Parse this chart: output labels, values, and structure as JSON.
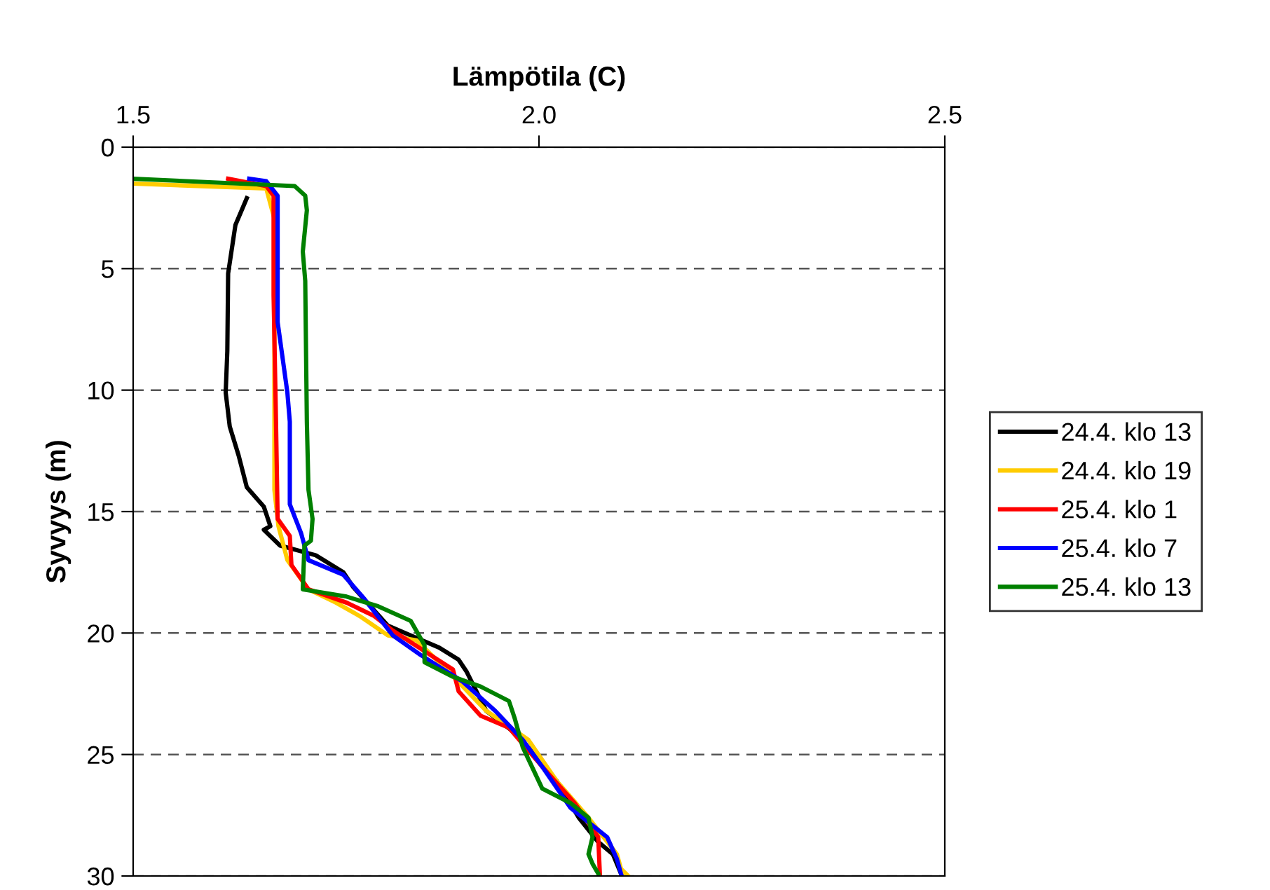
{
  "chart_data": {
    "type": "line",
    "xlabel": "Lämpötila (C)",
    "ylabel": "Syvyys (m)",
    "xlim": [
      1.5,
      2.5
    ],
    "xticks": [
      1.5,
      {
        "value": 2.0,
        "label": "2.0"
      },
      2.5
    ],
    "ylim": [
      30,
      0
    ],
    "yticks": [
      0,
      5,
      10,
      15,
      20,
      25,
      30
    ],
    "grid": "y",
    "legend": "right",
    "marker": "none",
    "line_style": "solid",
    "series": [
      {
        "name": "24.4. klo 13",
        "color": "#000000",
        "x": [
          1.64,
          1.626,
          1.617,
          1.616,
          1.614,
          1.619,
          1.63,
          1.64,
          1.661,
          1.669,
          1.661,
          1.681,
          1.725,
          1.759,
          1.771,
          1.814,
          1.842,
          1.877,
          1.901,
          1.911,
          1.935,
          1.97,
          1.992,
          2.022,
          2.049,
          2.073,
          2.091,
          2.101
        ],
        "values": [
          2.1,
          3.2,
          5.2,
          8.4,
          10.1,
          11.5,
          12.7,
          14.0,
          14.8,
          15.6,
          15.75,
          16.4,
          16.8,
          17.5,
          18.1,
          19.7,
          20.1,
          20.6,
          21.1,
          21.6,
          23.2,
          24.1,
          24.9,
          26.1,
          27.6,
          28.6,
          29.1,
          29.9
        ]
      },
      {
        "name": "24.4. klo 19",
        "color": "#ffcc00",
        "x": [
          1.5,
          1.664,
          1.676,
          1.674,
          1.674,
          1.679,
          1.69,
          1.716,
          1.75,
          1.779,
          1.814,
          1.849,
          1.889,
          1.935,
          1.987,
          2.022,
          2.061,
          2.096,
          2.101,
          2.11
        ],
        "values": [
          1.5,
          1.7,
          3.2,
          5.5,
          14.1,
          15.6,
          17.0,
          18.2,
          18.75,
          19.3,
          20.1,
          20.3,
          21.6,
          23.2,
          24.4,
          26.1,
          27.6,
          29.1,
          29.7,
          30
        ]
      },
      {
        "name": "25.4. klo 1",
        "color": "#ff0000",
        "x": [
          1.617,
          1.664,
          1.673,
          1.673,
          1.676,
          1.678,
          1.693,
          1.695,
          1.716,
          1.763,
          1.797,
          1.82,
          1.866,
          1.894,
          1.901,
          1.928,
          1.963,
          2.004,
          2.044,
          2.073,
          2.075
        ],
        "values": [
          1.3,
          1.6,
          2.0,
          6.1,
          11.3,
          15.3,
          16.0,
          17.2,
          18.2,
          18.75,
          19.3,
          19.9,
          20.9,
          21.5,
          22.4,
          23.4,
          23.9,
          25.5,
          27.0,
          28.4,
          29.9
        ]
      },
      {
        "name": "25.4. klo 7",
        "color": "#0000ff",
        "x": [
          1.643,
          1.664,
          1.678,
          1.678,
          1.69,
          1.693,
          1.693,
          1.707,
          1.716,
          1.759,
          1.785,
          1.82,
          1.854,
          1.906,
          1.946,
          1.98,
          2.004,
          2.039,
          2.084,
          2.096,
          2.101
        ],
        "values": [
          1.3,
          1.4,
          2.0,
          7.2,
          10.1,
          11.3,
          14.7,
          15.9,
          17.0,
          17.6,
          18.6,
          20.1,
          20.9,
          22.0,
          23.2,
          24.4,
          25.5,
          27.2,
          28.4,
          29.3,
          29.9
        ]
      },
      {
        "name": "25.4. klo 13",
        "color": "#008000",
        "x": [
          1.5,
          1.699,
          1.712,
          1.714,
          1.709,
          1.712,
          1.714,
          1.716,
          1.721,
          1.719,
          1.711,
          1.709,
          1.763,
          1.802,
          1.842,
          1.859,
          1.859,
          1.894,
          1.928,
          1.963,
          1.97,
          1.98,
          2.004,
          2.039,
          2.061,
          2.066,
          2.061,
          2.066,
          2.073
        ],
        "values": [
          1.3,
          1.6,
          2.0,
          2.6,
          4.3,
          5.5,
          11.3,
          14.1,
          15.3,
          16.2,
          16.4,
          18.2,
          18.5,
          18.9,
          19.5,
          20.5,
          21.2,
          21.8,
          22.2,
          22.8,
          23.5,
          24.7,
          26.4,
          27.0,
          27.6,
          28.4,
          29.1,
          29.5,
          29.9
        ]
      }
    ]
  }
}
